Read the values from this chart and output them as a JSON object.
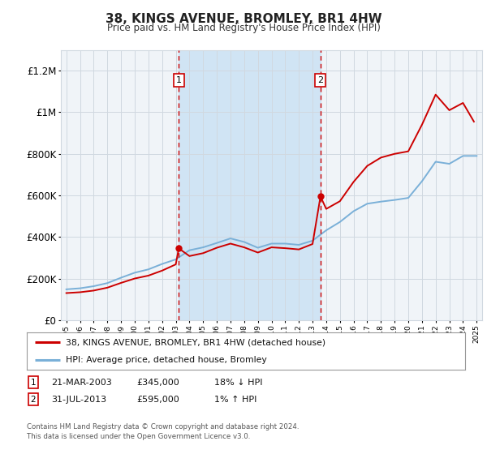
{
  "title": "38, KINGS AVENUE, BROMLEY, BR1 4HW",
  "subtitle": "Price paid vs. HM Land Registry's House Price Index (HPI)",
  "bg_color": "#ffffff",
  "plot_bg_color": "#f0f4f8",
  "grid_color": "#d0d8e0",
  "shade_color": "#d0e4f4",
  "ylim": [
    0,
    1300000
  ],
  "yticks": [
    0,
    200000,
    400000,
    600000,
    800000,
    1000000,
    1200000
  ],
  "ytick_labels": [
    "£0",
    "£200K",
    "£400K",
    "£600K",
    "£800K",
    "£1M",
    "£1.2M"
  ],
  "purchase1_year": 2003.22,
  "purchase1_price": 345000,
  "purchase2_year": 2013.58,
  "purchase2_price": 595000,
  "red_line_color": "#cc0000",
  "blue_line_color": "#7ab0d8",
  "hpi_years": [
    1995,
    1996,
    1997,
    1998,
    1999,
    2000,
    2001,
    2002,
    2003,
    2004,
    2005,
    2006,
    2007,
    2008,
    2009,
    2010,
    2011,
    2012,
    2013,
    2014,
    2015,
    2016,
    2017,
    2018,
    2019,
    2020,
    2021,
    2022,
    2023,
    2024,
    2025
  ],
  "hpi_values": [
    148000,
    153000,
    163000,
    178000,
    204000,
    228000,
    244000,
    270000,
    292000,
    336000,
    350000,
    371000,
    393000,
    376000,
    348000,
    368000,
    368000,
    362000,
    382000,
    432000,
    472000,
    524000,
    560000,
    570000,
    578000,
    588000,
    668000,
    762000,
    752000,
    790000,
    790000
  ],
  "red_years": [
    1995,
    1996,
    1997,
    1998,
    1999,
    2000,
    2001,
    2002,
    2003.0,
    2003.22,
    2004,
    2005,
    2006,
    2007,
    2008,
    2009,
    2010,
    2011,
    2012,
    2013.0,
    2013.58,
    2014,
    2015,
    2016,
    2017,
    2018,
    2019,
    2020,
    2021,
    2022,
    2023,
    2024,
    2024.8
  ],
  "red_values": [
    130000,
    134000,
    142000,
    156000,
    179000,
    200000,
    214000,
    238000,
    268000,
    345000,
    308000,
    322000,
    348000,
    368000,
    350000,
    325000,
    350000,
    346000,
    340000,
    366000,
    595000,
    535000,
    572000,
    665000,
    742000,
    782000,
    800000,
    812000,
    940000,
    1085000,
    1010000,
    1045000,
    955000
  ],
  "legend_label_red": "38, KINGS AVENUE, BROMLEY, BR1 4HW (detached house)",
  "legend_label_blue": "HPI: Average price, detached house, Bromley",
  "annotation1_num": "1",
  "annotation1_date": "21-MAR-2003",
  "annotation1_price": "£345,000",
  "annotation1_hpi": "18% ↓ HPI",
  "annotation2_num": "2",
  "annotation2_date": "31-JUL-2013",
  "annotation2_price": "£595,000",
  "annotation2_hpi": "1% ↑ HPI",
  "footnote": "Contains HM Land Registry data © Crown copyright and database right 2024.\nThis data is licensed under the Open Government Licence v3.0."
}
